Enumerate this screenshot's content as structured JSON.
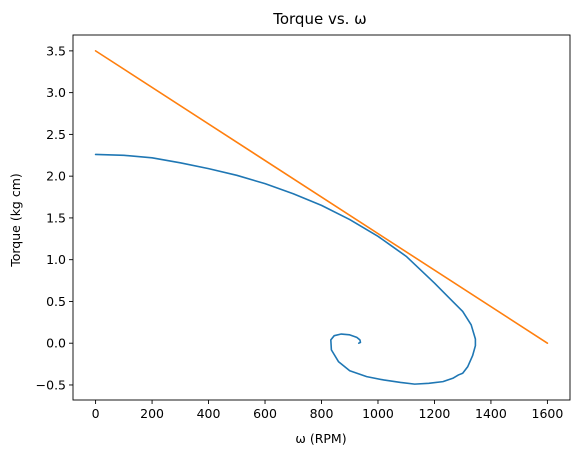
{
  "chart_data": {
    "type": "line",
    "title": "Torque vs. ω",
    "xlabel": "ω (RPM)",
    "ylabel": "Torque (kg cm)",
    "xlim": [
      -80,
      1680
    ],
    "ylim": [
      -0.68,
      3.69
    ],
    "xticks": [
      0,
      200,
      400,
      600,
      800,
      1000,
      1200,
      1400,
      1600
    ],
    "yticks": [
      -0.5,
      0.0,
      0.5,
      1.0,
      1.5,
      2.0,
      2.5,
      3.0,
      3.5
    ],
    "xtick_labels": [
      "0",
      "200",
      "400",
      "600",
      "800",
      "1000",
      "1200",
      "1400",
      "1600"
    ],
    "ytick_labels": [
      "−0.5",
      "0.0",
      "0.5",
      "1.0",
      "1.5",
      "2.0",
      "2.5",
      "3.0",
      "3.5"
    ],
    "grid": false,
    "colors": {
      "series1": "#1f77b4",
      "series2": "#ff7f0e"
    },
    "series": [
      {
        "x": [
          0,
          100,
          200,
          300,
          400,
          500,
          600,
          700,
          800,
          900,
          950,
          1000,
          1050,
          1100,
          1150,
          1200,
          1250,
          1300,
          1330,
          1345,
          1345,
          1335,
          1318,
          1300,
          1285,
          1265,
          1230,
          1180,
          1130,
          1080,
          1020,
          960,
          900,
          860,
          835,
          833,
          845,
          870,
          900,
          925,
          936,
          938,
          932
        ],
        "y": [
          2.26,
          2.25,
          2.22,
          2.16,
          2.09,
          2.01,
          1.91,
          1.79,
          1.65,
          1.48,
          1.38,
          1.28,
          1.16,
          1.04,
          0.88,
          0.72,
          0.55,
          0.38,
          0.22,
          0.05,
          -0.03,
          -0.15,
          -0.28,
          -0.36,
          -0.38,
          -0.42,
          -0.46,
          -0.48,
          -0.49,
          -0.47,
          -0.44,
          -0.4,
          -0.33,
          -0.22,
          -0.08,
          0.04,
          0.09,
          0.11,
          0.1,
          0.07,
          0.04,
          0.01,
          0.0
        ]
      },
      {
        "x": [
          0,
          1600
        ],
        "y": [
          3.5,
          0.0
        ]
      }
    ]
  }
}
